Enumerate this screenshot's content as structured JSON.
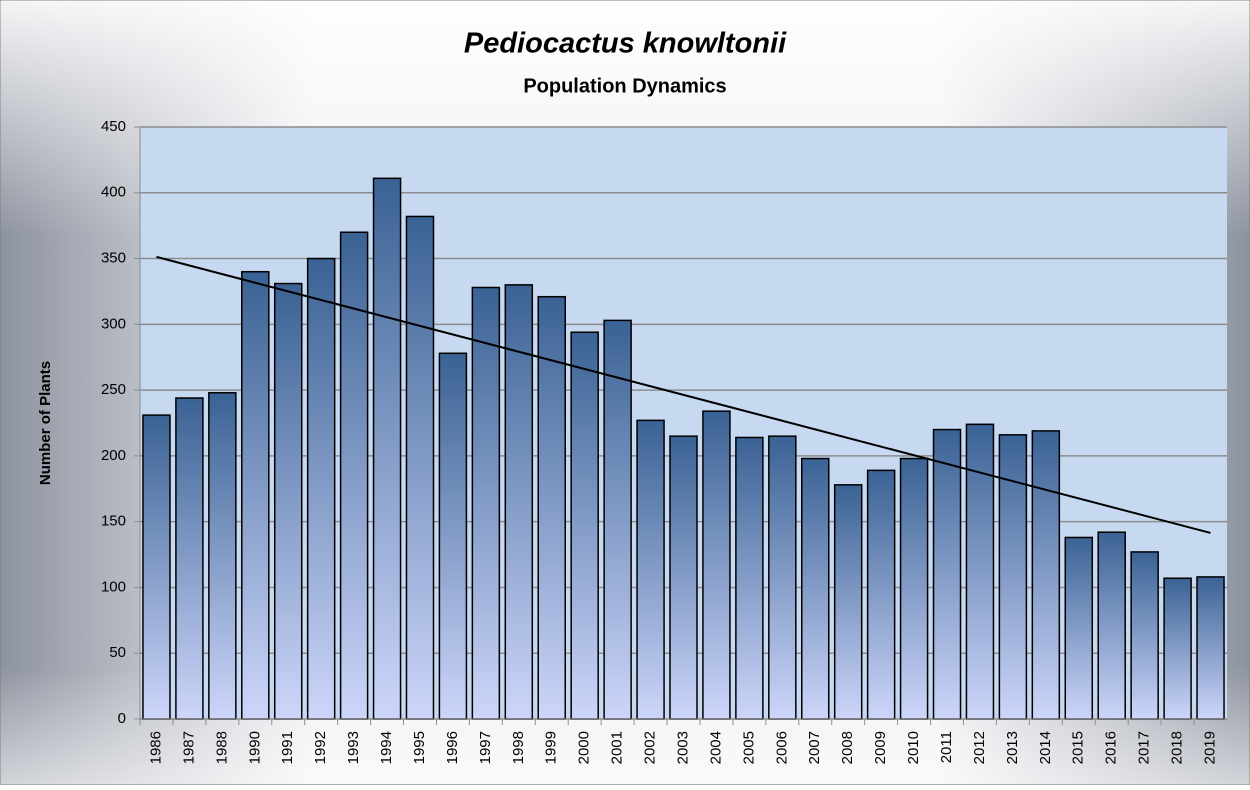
{
  "chart_data": {
    "type": "bar",
    "title": "Pediocactus knowltonii",
    "subtitle": "Population Dynamics",
    "y_label": "Number of Plants",
    "categories": [
      "1986",
      "1987",
      "1988",
      "1990",
      "1991",
      "1992",
      "1993",
      "1994",
      "1995",
      "1996",
      "1997",
      "1998",
      "1999",
      "2000",
      "2001",
      "2002",
      "2003",
      "2004",
      "2005",
      "2006",
      "2007",
      "2008",
      "2009",
      "2010",
      "2011",
      "2012",
      "2013",
      "2014",
      "2015",
      "2016",
      "2017",
      "2018",
      "2019"
    ],
    "values": [
      231,
      244,
      248,
      340,
      331,
      350,
      370,
      411,
      382,
      278,
      328,
      330,
      321,
      294,
      303,
      227,
      215,
      234,
      214,
      215,
      198,
      178,
      189,
      198,
      220,
      224,
      216,
      219,
      138,
      142,
      127,
      107,
      108
    ],
    "color": "#3a6294",
    "ylim": [
      0,
      450
    ],
    "yticks": [
      0,
      50,
      100,
      150,
      200,
      250,
      300,
      350,
      400,
      450
    ],
    "grid": true,
    "trendline": true
  }
}
